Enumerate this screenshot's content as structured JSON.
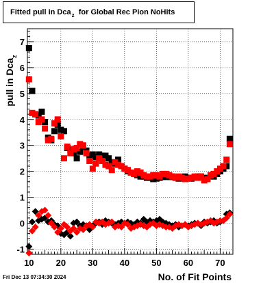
{
  "title": {
    "main": "Fitted pull in Dca",
    "subscript": "z",
    "rest": "for Global Rec Pion NoHits"
  },
  "timestamp": "Fri Dec 13 07:34:30 2024",
  "colors": {
    "series_black": "#000000",
    "series_red": "#ff0000",
    "grid": "#000000"
  },
  "chart_data": {
    "type": "scatter",
    "title": "Fitted pull in Dca_z for Global Rec Pion NoHits",
    "xlabel": "No. of Fit Points",
    "ylabel": "pull in Dca",
    "ylabel_subscript": "z",
    "xlim": [
      9.5,
      74
    ],
    "ylim": [
      -1.2,
      7.5
    ],
    "xticks": [
      10,
      20,
      30,
      40,
      50,
      60,
      70
    ],
    "yticks": [
      -1,
      0,
      1,
      2,
      3,
      4,
      5,
      6,
      7
    ],
    "grid": true,
    "x": [
      10,
      11,
      12,
      13,
      14,
      15,
      16,
      17,
      18,
      19,
      20,
      21,
      22,
      23,
      24,
      25,
      26,
      27,
      28,
      29,
      30,
      31,
      32,
      33,
      34,
      35,
      36,
      37,
      38,
      39,
      40,
      41,
      42,
      43,
      44,
      45,
      46,
      47,
      48,
      49,
      50,
      51,
      52,
      53,
      54,
      55,
      56,
      57,
      58,
      59,
      60,
      61,
      62,
      63,
      64,
      65,
      66,
      67,
      68,
      69,
      70,
      71,
      72,
      73
    ],
    "series": [
      {
        "marker": "square",
        "color": "#000000",
        "values": [
          6.75,
          5.1,
          4.2,
          4.15,
          4.3,
          3.9,
          3.3,
          3.2,
          3.55,
          3.8,
          3.6,
          3.55,
          2.9,
          2.85,
          2.7,
          2.5,
          2.75,
          2.95,
          2.8,
          2.6,
          2.65,
          2.55,
          2.65,
          2.6,
          2.6,
          2.5,
          2.35,
          2.3,
          2.45,
          2.2,
          2.1,
          2.0,
          1.95,
          1.9,
          1.85,
          1.8,
          1.8,
          1.75,
          1.75,
          1.7,
          1.72,
          1.75,
          1.78,
          1.8,
          1.78,
          1.8,
          1.75,
          1.72,
          1.75,
          1.8,
          1.75,
          1.72,
          1.78,
          1.8,
          1.8,
          1.75,
          1.72,
          1.85,
          1.8,
          1.9,
          2.0,
          2.1,
          2.2,
          3.25
        ]
      },
      {
        "marker": "square",
        "color": "#ff0000",
        "values": [
          5.55,
          4.25,
          4.2,
          3.9,
          4.0,
          3.65,
          3.2,
          3.25,
          3.85,
          4.0,
          3.35,
          2.5,
          2.95,
          2.7,
          2.85,
          2.9,
          3.05,
          3.0,
          2.7,
          2.4,
          2.1,
          2.3,
          2.5,
          2.4,
          2.25,
          2.2,
          2.05,
          2.35,
          2.25,
          2.2,
          2.1,
          2.05,
          1.95,
          1.9,
          2.0,
          1.95,
          1.85,
          1.8,
          1.8,
          1.85,
          1.85,
          1.8,
          1.9,
          1.9,
          1.85,
          1.8,
          1.75,
          1.8,
          1.75,
          1.7,
          1.72,
          1.75,
          1.8,
          1.75,
          1.8,
          1.65,
          1.7,
          1.85,
          1.9,
          2.0,
          2.1,
          2.2,
          2.45,
          3.05
        ]
      },
      {
        "marker": "diamond",
        "color": "#000000",
        "values": [
          -0.9,
          0.05,
          0.45,
          0.1,
          0.15,
          0.2,
          0.05,
          0.1,
          -0.05,
          -0.1,
          -0.4,
          -0.45,
          -0.35,
          -0.5,
          0.0,
          0.05,
          -0.1,
          -0.05,
          -0.1,
          -0.25,
          -0.1,
          0.0,
          0.05,
          -0.05,
          0.1,
          0.05,
          0.0,
          -0.05,
          0.0,
          0.05,
          0.0,
          0.05,
          0.0,
          -0.05,
          0.05,
          0.0,
          0.15,
          0.05,
          0.1,
          0.05,
          0.1,
          0.15,
          0.05,
          0.0,
          -0.05,
          -0.1,
          -0.05,
          -0.15,
          -0.1,
          -0.05,
          -0.1,
          -0.05,
          0.0,
          0.0,
          -0.1,
          0.05,
          0.0,
          0.05,
          0.1,
          0.0,
          0.05,
          0.1,
          0.35,
          0.4
        ]
      },
      {
        "marker": "diamond",
        "color": "#ff0000",
        "values": [
          -1.15,
          -0.3,
          -0.15,
          0.3,
          0.45,
          0.5,
          0.3,
          0.0,
          -0.15,
          -0.35,
          -0.2,
          -0.05,
          -0.15,
          -0.3,
          -0.2,
          -0.35,
          -0.2,
          -0.25,
          -0.1,
          -0.05,
          -0.15,
          0.05,
          0.0,
          0.05,
          -0.05,
          0.0,
          0.05,
          -0.15,
          -0.1,
          -0.15,
          0.0,
          -0.05,
          -0.2,
          -0.15,
          -0.1,
          -0.05,
          -0.1,
          -0.15,
          -0.05,
          0.0,
          -0.1,
          -0.05,
          -0.1,
          -0.15,
          -0.15,
          -0.2,
          -0.1,
          -0.05,
          -0.1,
          -0.05,
          -0.15,
          -0.1,
          -0.05,
          0.0,
          -0.05,
          0.0,
          0.05,
          0.1,
          0.0,
          0.05,
          0.1,
          0.1,
          0.2,
          0.35
        ]
      }
    ]
  }
}
